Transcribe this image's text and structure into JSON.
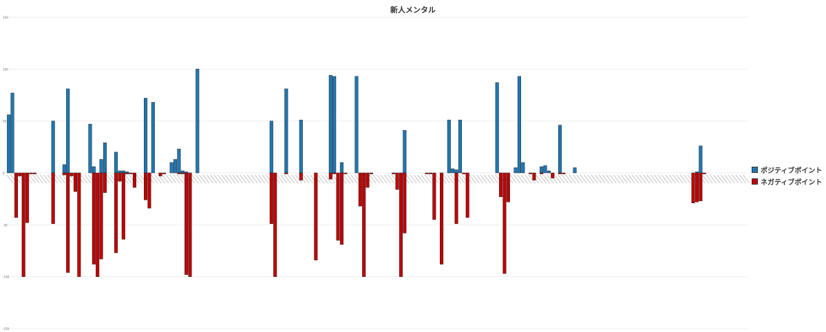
{
  "title": "新人メンタル",
  "chart_data": {
    "type": "bar",
    "title": "新人メンタル",
    "xlabel": "",
    "ylabel": "",
    "ylim": [
      -150,
      150
    ],
    "yticks": [
      -150,
      -100,
      -50,
      0,
      50,
      100,
      150
    ],
    "grid": true,
    "legend_position": "right",
    "n_categories": 200,
    "series": [
      {
        "name": "ポジティブポイント",
        "color": "#1f77b4",
        "values": [
          56,
          77,
          0,
          0,
          0,
          0,
          0,
          0,
          0,
          0,
          0,
          0,
          50,
          0,
          0,
          8,
          81,
          0,
          0,
          0,
          0,
          0,
          47,
          6,
          0,
          13,
          29,
          0,
          0,
          20,
          2,
          2,
          1,
          0,
          0,
          0,
          0,
          72,
          0,
          68,
          0,
          0,
          0,
          0,
          10,
          13,
          23,
          2,
          1,
          0,
          0,
          100,
          0,
          0,
          0,
          0,
          0,
          0,
          0,
          0,
          0,
          0,
          0,
          0,
          0,
          0,
          0,
          0,
          0,
          0,
          0,
          50,
          0,
          0,
          0,
          81,
          0,
          0,
          0,
          51,
          0,
          0,
          0,
          0,
          0,
          0,
          0,
          94,
          93,
          0,
          10,
          0,
          0,
          0,
          93,
          0,
          0,
          0,
          0,
          0,
          0,
          0,
          0,
          0,
          0,
          0,
          0,
          41,
          0,
          0,
          0,
          0,
          0,
          0,
          0,
          0,
          0,
          0,
          0,
          51,
          4,
          3,
          51,
          0,
          0,
          0,
          0,
          0,
          0,
          0,
          0,
          0,
          87,
          0,
          0,
          0,
          0,
          5,
          93,
          10,
          0,
          0,
          0,
          0,
          6,
          7,
          2,
          0,
          0,
          46,
          0,
          0,
          0,
          5,
          0,
          0,
          0,
          0,
          0,
          0,
          0,
          0,
          0,
          0,
          0,
          0,
          0,
          0,
          0,
          0,
          0,
          0,
          0,
          0,
          0,
          0,
          0,
          0,
          0,
          0,
          0,
          0,
          0,
          0,
          0,
          0,
          1,
          26,
          0,
          0,
          0,
          0,
          0,
          0,
          0,
          0,
          0,
          0,
          0,
          0,
          0,
          0,
          0
        ]
      },
      {
        "name": "ネガティブポイント",
        "color": "#c00000",
        "values": [
          0,
          0,
          -43,
          -3,
          -100,
          -48,
          -1,
          -1,
          0,
          0,
          0,
          0,
          -49,
          0,
          0,
          -2,
          -96,
          -3,
          -18,
          -100,
          0,
          0,
          0,
          -88,
          -100,
          -83,
          -19,
          0,
          0,
          -77,
          -8,
          -64,
          -1,
          -1,
          -14,
          0,
          0,
          -26,
          -34,
          0,
          0,
          -3,
          -1,
          0,
          0,
          0,
          -1,
          -1,
          -98,
          -100,
          0,
          0,
          0,
          0,
          0,
          0,
          0,
          0,
          0,
          0,
          0,
          0,
          0,
          0,
          0,
          0,
          0,
          0,
          0,
          0,
          0,
          -49,
          -100,
          0,
          0,
          -1,
          0,
          0,
          0,
          -7,
          0,
          0,
          0,
          -84,
          0,
          0,
          0,
          -6,
          -1,
          -65,
          -69,
          -1,
          0,
          0,
          0,
          -32,
          -100,
          -14,
          -1,
          0,
          0,
          0,
          0,
          0,
          -1,
          -16,
          -100,
          -58,
          0,
          0,
          0,
          0,
          0,
          -1,
          -1,
          -45,
          0,
          -88,
          0,
          0,
          0,
          -49,
          0,
          -1,
          -43,
          0,
          0,
          0,
          0,
          0,
          0,
          0,
          0,
          -23,
          -97,
          -28,
          0,
          0,
          0,
          0,
          0,
          -1,
          -7,
          0,
          -1,
          0,
          0,
          -5,
          0,
          -1,
          -1,
          0,
          0,
          0,
          0,
          0,
          0,
          0,
          0,
          0,
          0,
          0,
          0,
          0,
          0,
          0,
          0,
          0,
          0,
          0,
          0,
          0,
          0,
          0,
          0,
          0,
          0,
          0,
          0,
          0,
          0,
          0,
          0,
          0,
          0,
          -29,
          -28,
          -27,
          -1,
          0,
          0,
          0,
          0,
          0,
          0,
          0,
          0,
          0,
          0,
          0,
          0
        ]
      }
    ]
  }
}
